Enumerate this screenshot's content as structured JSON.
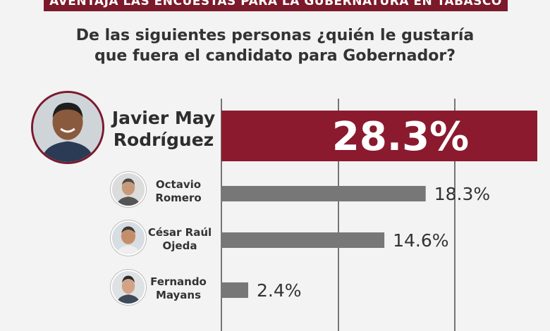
{
  "banner": {
    "text": "AVENTAJA LAS ENCUESTAS PARA LA GUBERNATURA EN TABASCO"
  },
  "question": {
    "line1": "De las siguientes personas ¿quién le gustaría",
    "line2": "que fuera el candidato para Gobernador?"
  },
  "candidates": [
    {
      "line1": "Javier May",
      "line2": "Rodríguez"
    },
    {
      "line1": "Octavio",
      "line2": "Romero"
    },
    {
      "line1": "César Raúl",
      "line2": "Ojeda"
    },
    {
      "line1": "Fernando",
      "line2": "Mayans"
    }
  ],
  "colors": {
    "highlight": "#8b1a2e",
    "bar": "#777777",
    "text": "#333333",
    "grid": "#222222"
  },
  "chart_data": {
    "type": "bar",
    "orientation": "horizontal",
    "title": "De las siguientes personas ¿quién le gustaría que fuera el candidato para Gobernador?",
    "categories": [
      "Javier May Rodríguez",
      "Octavio Romero",
      "César Raúl Ojeda",
      "Fernando Mayans"
    ],
    "values": [
      28.3,
      18.3,
      14.6,
      2.4
    ],
    "labels": [
      "28.3%",
      "18.3%",
      "14.6%",
      "2.4%"
    ],
    "xlim": [
      0,
      28.3
    ],
    "grid": true,
    "legend": "none"
  }
}
